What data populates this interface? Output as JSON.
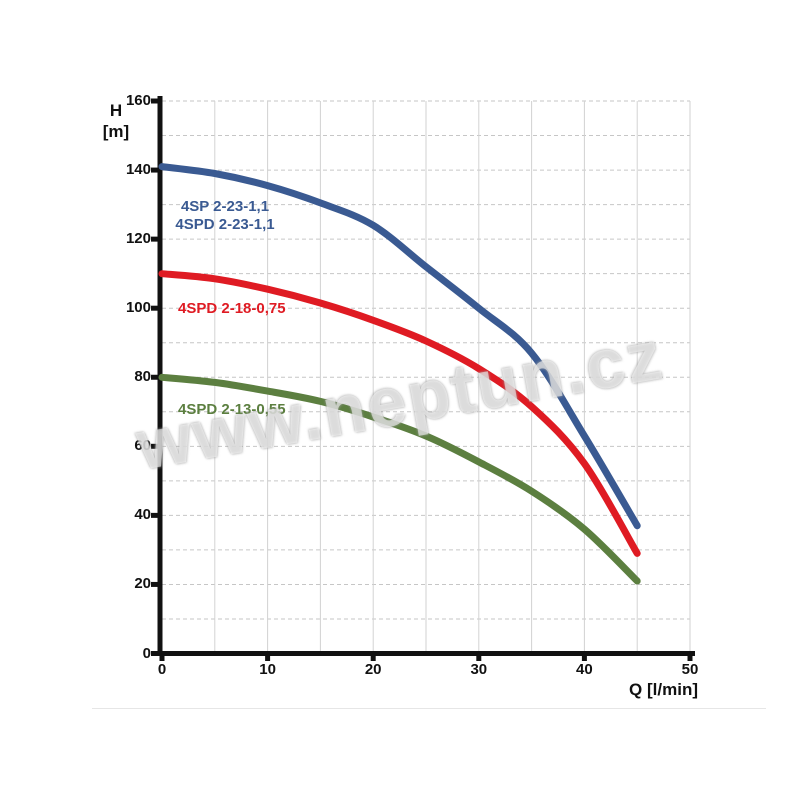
{
  "watermark": "www.neptun.cz",
  "axes": {
    "y_title_line1": "H",
    "y_title_line2": "[m]",
    "x_title": "Q [l/min]"
  },
  "colors": {
    "axis": "#111111",
    "grid_horizontal": "#c6c6c6",
    "grid_vertical": "#d2d2d2",
    "blue_series": "#3A5A92",
    "red_series": "#DF1B23",
    "green_series": "#5C7F40"
  },
  "chart_data": {
    "type": "line",
    "title": "",
    "xlabel": "Q [l/min]",
    "ylabel": "H [m]",
    "xlim": [
      0,
      50
    ],
    "ylim": [
      0,
      160
    ],
    "grid": true,
    "x_ticks": [
      0,
      10,
      20,
      30,
      40,
      50
    ],
    "y_ticks": [
      0,
      20,
      40,
      60,
      80,
      100,
      120,
      140,
      160
    ],
    "x_grid_step": 5,
    "y_grid_step": 10,
    "legend_position": "inline-labels-left",
    "series": [
      {
        "name": "4SP 2-23-1,1 / 4SPD 2-23-1,1",
        "label_lines": [
          "4SP 2-23-1,1",
          "4SPD 2-23-1,1"
        ],
        "color": "#3A5A92",
        "x": [
          0,
          5,
          10,
          15,
          20,
          25,
          30,
          35,
          40,
          45
        ],
        "y": [
          141,
          139,
          135.5,
          130.5,
          124,
          112,
          100,
          87,
          63,
          37
        ],
        "label_box": {
          "left": 155,
          "top": 198,
          "width": 140,
          "align": "center"
        }
      },
      {
        "name": "4SPD 2-18-0,75",
        "label_lines": [
          "4SPD 2-18-0,75"
        ],
        "color": "#DF1B23",
        "x": [
          0,
          5,
          10,
          15,
          20,
          25,
          30,
          35,
          40,
          45
        ],
        "y": [
          110,
          108.5,
          105.5,
          101.5,
          96.5,
          90.5,
          82.5,
          71.5,
          55,
          29
        ],
        "label_box": {
          "left": 178,
          "top": 300,
          "width": 130,
          "align": "left"
        }
      },
      {
        "name": "4SPD 2-13-0,55",
        "label_lines": [
          "4SPD 2-13-0,55"
        ],
        "color": "#5C7F40",
        "x": [
          0,
          5,
          10,
          15,
          20,
          25,
          30,
          35,
          40,
          45
        ],
        "y": [
          80,
          78.5,
          76,
          73,
          68.5,
          63,
          55.5,
          47,
          36,
          21
        ],
        "label_box": {
          "left": 178,
          "top": 401,
          "width": 130,
          "align": "left"
        }
      }
    ]
  }
}
